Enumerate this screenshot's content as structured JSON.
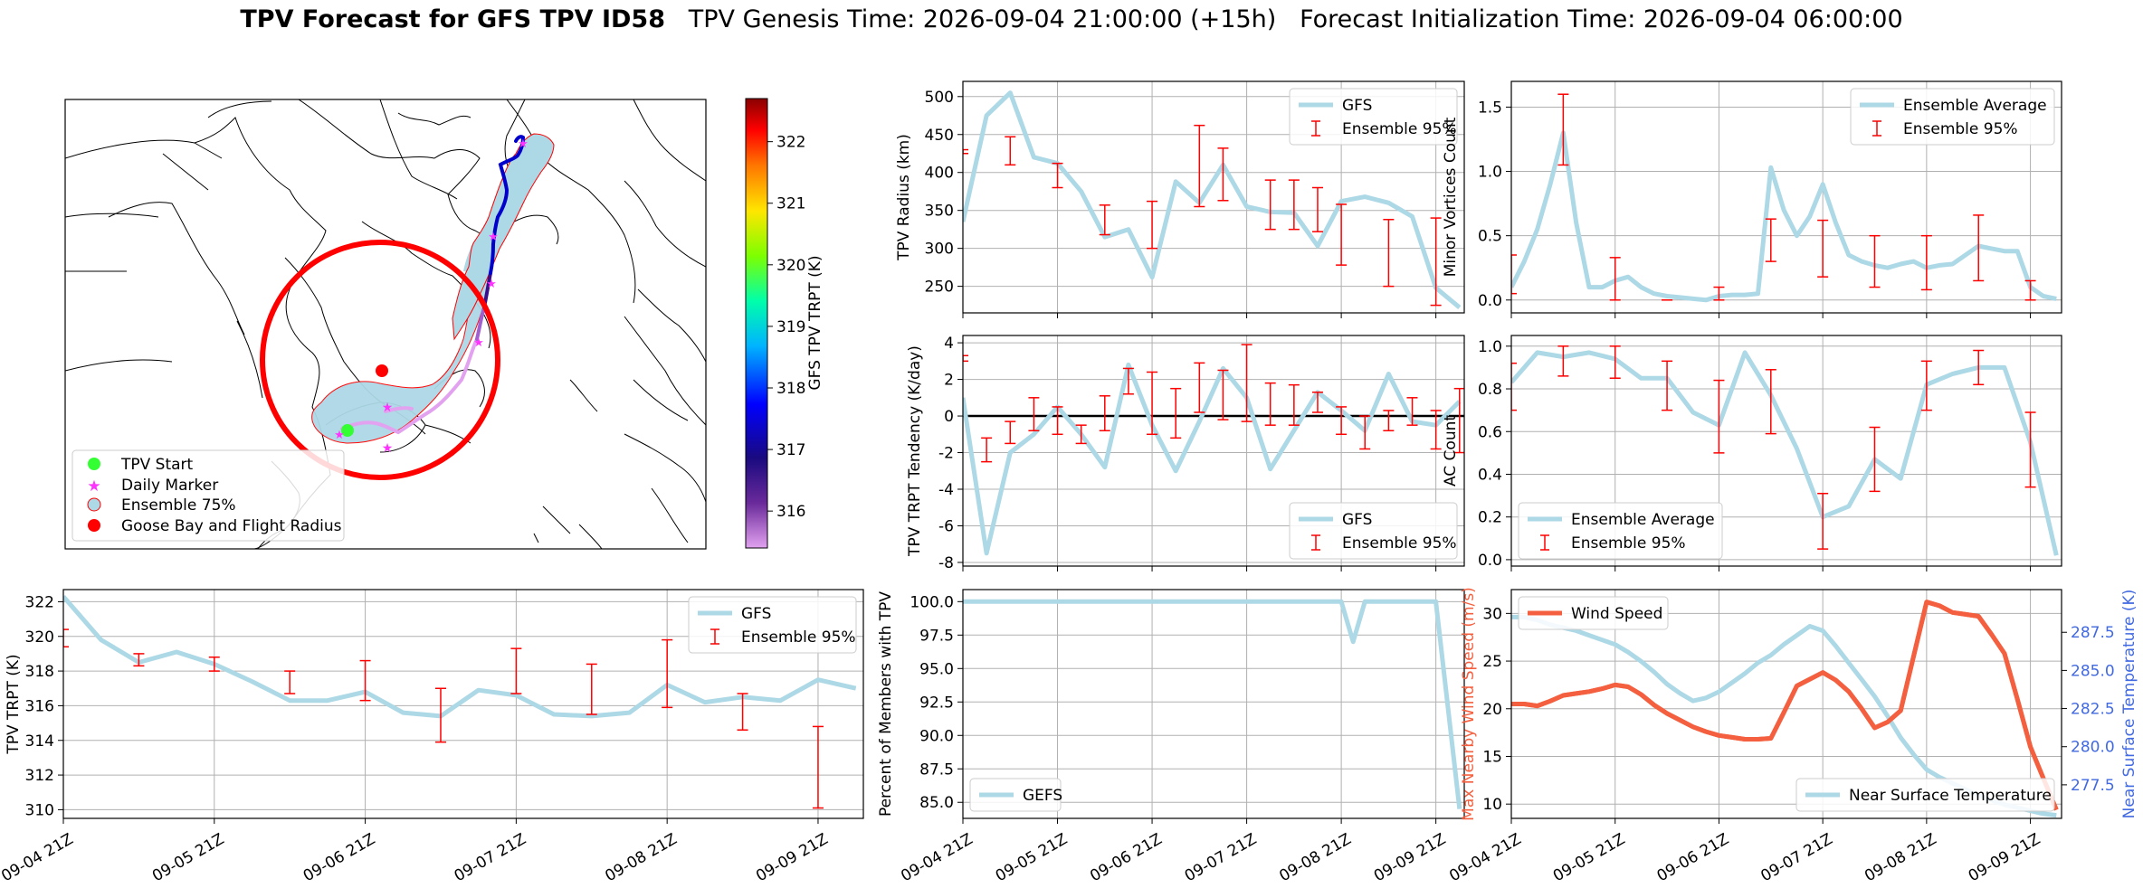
{
  "figure": {
    "title_bold": "TPV Forecast for GFS TPV ID58",
    "genesis": "TPV Genesis Time: 2026-09-04 21:00:00 (+15h)",
    "init": "Forecast Initialization Time: 2026-09-04 06:00:00"
  },
  "colors": {
    "gfs_line": "#add8e6",
    "errbar": "#ff0000",
    "wind": "#f4603f",
    "temp_axis": "#4169e1",
    "grid": "#b0b0b0"
  },
  "chart_data": [
    {
      "id": "map",
      "type": "map",
      "legend": [
        "TPV Start",
        "Daily Marker",
        "Ensemble 75%",
        "Goose Bay and Flight Radius"
      ],
      "legend_colors": [
        "#33ff33",
        "#ff33ff",
        "#add8e6",
        "#ff0000"
      ],
      "colorbar_label": "GFS TPV TRPT (K)",
      "colorbar_ticks": [
        316,
        317,
        318,
        319,
        320,
        321,
        322
      ],
      "colorbar_range": [
        315.4,
        322.7
      ]
    },
    {
      "id": "radius",
      "type": "line",
      "ylabel": "TPV Radius (km)",
      "ylim": [
        215,
        520
      ],
      "yticks": [
        250,
        300,
        350,
        400,
        450,
        500
      ],
      "legend": [
        "GFS",
        "Ensemble 95%"
      ],
      "legend_loc": "top-right",
      "x": [
        0,
        0.25,
        0.5,
        0.75,
        1,
        1.25,
        1.5,
        1.75,
        2,
        2.25,
        2.5,
        2.75,
        3,
        3.25,
        3.5,
        3.75,
        4,
        4.25,
        4.5,
        4.75,
        5,
        5.25
      ],
      "y": [
        335,
        475,
        505,
        420,
        412,
        375,
        315,
        325,
        262,
        388,
        360,
        410,
        355,
        348,
        347,
        303,
        362,
        368,
        360,
        342,
        248,
        222
      ],
      "err_x": [
        0,
        0.5,
        1,
        1.5,
        2,
        2.5,
        2.75,
        3.25,
        3.5,
        3.75,
        4,
        4.5,
        5
      ],
      "err_lo": [
        425,
        410,
        380,
        318,
        300,
        355,
        363,
        325,
        325,
        322,
        278,
        250,
        225
      ],
      "err_hi": [
        430,
        447,
        412,
        357,
        362,
        462,
        432,
        390,
        390,
        380,
        358,
        338,
        340
      ]
    },
    {
      "id": "minor",
      "type": "line",
      "ylabel": "Minor Vortices Count",
      "ylim": [
        -0.1,
        1.7
      ],
      "yticks": [
        0.0,
        0.5,
        1.0,
        1.5
      ],
      "legend": [
        "Ensemble Average",
        "Ensemble 95%"
      ],
      "legend_loc": "top-right",
      "x": [
        0,
        0.125,
        0.25,
        0.375,
        0.5,
        0.625,
        0.75,
        0.875,
        1,
        1.125,
        1.25,
        1.375,
        1.5,
        1.625,
        1.75,
        1.875,
        2,
        2.125,
        2.25,
        2.375,
        2.5,
        2.625,
        2.75,
        2.875,
        3,
        3.125,
        3.25,
        3.375,
        3.5,
        3.625,
        3.75,
        3.875,
        4,
        4.125,
        4.25,
        4.375,
        4.5,
        4.625,
        4.75,
        4.875,
        5,
        5.125,
        5.25
      ],
      "y": [
        0.1,
        0.3,
        0.55,
        0.9,
        1.3,
        0.6,
        0.1,
        0.1,
        0.15,
        0.18,
        0.1,
        0.05,
        0.03,
        0.02,
        0.01,
        0.0,
        0.03,
        0.04,
        0.04,
        0.05,
        1.03,
        0.7,
        0.5,
        0.65,
        0.9,
        0.6,
        0.35,
        0.3,
        0.27,
        0.25,
        0.28,
        0.3,
        0.25,
        0.27,
        0.28,
        0.35,
        0.42,
        0.4,
        0.38,
        0.38,
        0.1,
        0.03,
        0.01
      ],
      "err_x": [
        0,
        0.5,
        1,
        1.5,
        2,
        2.5,
        3,
        3.5,
        4,
        4.5,
        5
      ],
      "err_lo": [
        0.05,
        1.05,
        0.0,
        0.0,
        0.0,
        0.3,
        0.18,
        0.1,
        0.08,
        0.15,
        0.0
      ],
      "err_hi": [
        0.35,
        1.6,
        0.33,
        0.0,
        0.1,
        0.63,
        0.62,
        0.5,
        0.5,
        0.66,
        0.15
      ]
    },
    {
      "id": "tendency",
      "type": "line",
      "ylabel": "TPV TRPT Tendency (K/day)",
      "ylim": [
        -8.2,
        4.4
      ],
      "yticks": [
        -8,
        -6,
        -4,
        -2,
        0,
        2,
        4
      ],
      "zero_line": true,
      "legend": [
        "GFS",
        "Ensemble 95%"
      ],
      "legend_loc": "bottom-right",
      "x": [
        0,
        0.25,
        0.5,
        0.75,
        1,
        1.25,
        1.5,
        1.75,
        2,
        2.25,
        2.5,
        2.75,
        3,
        3.25,
        3.5,
        3.75,
        4,
        4.25,
        4.5,
        4.75,
        5,
        5.25
      ],
      "y": [
        1.0,
        -7.5,
        -2.0,
        -1.0,
        0.5,
        -1.0,
        -2.8,
        2.8,
        -0.5,
        -3.0,
        -0.3,
        2.6,
        1.0,
        -2.9,
        -0.8,
        1.3,
        0.3,
        -0.8,
        2.3,
        -0.3,
        -0.5,
        0.8
      ],
      "err_x": [
        0,
        0.25,
        0.5,
        0.75,
        1,
        1.25,
        1.5,
        1.75,
        2,
        2.25,
        2.5,
        2.75,
        3,
        3.25,
        3.5,
        3.75,
        4,
        4.25,
        4.5,
        4.75,
        5,
        5.25
      ],
      "err_lo": [
        3.0,
        -2.5,
        -1.5,
        -0.8,
        -1.0,
        -1.5,
        -0.8,
        1.2,
        -1.0,
        -1.2,
        0.2,
        -0.2,
        -0.3,
        -0.5,
        -0.5,
        0.2,
        -1.0,
        -1.8,
        -0.8,
        -0.5,
        -1.8,
        -2.0
      ],
      "err_hi": [
        3.3,
        -1.2,
        -0.3,
        1.0,
        0.5,
        -0.5,
        1.1,
        2.6,
        2.4,
        1.5,
        2.9,
        2.5,
        3.9,
        1.8,
        1.7,
        1.3,
        0.5,
        0.0,
        0.3,
        1.0,
        0.3,
        1.5
      ]
    },
    {
      "id": "ac",
      "type": "line",
      "ylabel": "AC Count",
      "ylim": [
        -0.03,
        1.05
      ],
      "yticks": [
        0.0,
        0.2,
        0.4,
        0.6,
        0.8,
        1.0
      ],
      "legend": [
        "Ensemble Average",
        "Ensemble 95%"
      ],
      "legend_loc": "bottom-left",
      "x": [
        0,
        0.25,
        0.5,
        0.75,
        1,
        1.25,
        1.5,
        1.75,
        2,
        2.25,
        2.5,
        2.75,
        3,
        3.25,
        3.5,
        3.75,
        4,
        4.25,
        4.5,
        4.75,
        5,
        5.25
      ],
      "y": [
        0.83,
        0.97,
        0.95,
        0.97,
        0.94,
        0.85,
        0.85,
        0.69,
        0.63,
        0.97,
        0.77,
        0.52,
        0.2,
        0.25,
        0.47,
        0.38,
        0.82,
        0.87,
        0.9,
        0.9,
        0.55,
        0.02
      ],
      "err_x": [
        0,
        0.5,
        1,
        1.5,
        2,
        2.5,
        3,
        3.5,
        4,
        4.5,
        5
      ],
      "err_lo": [
        0.7,
        0.86,
        0.85,
        0.7,
        0.5,
        0.59,
        0.05,
        0.32,
        0.7,
        0.82,
        0.34
      ],
      "err_hi": [
        0.92,
        1.0,
        1.0,
        0.93,
        0.84,
        0.89,
        0.31,
        0.62,
        0.93,
        0.98,
        0.69
      ]
    },
    {
      "id": "trpt",
      "type": "line",
      "ylabel": "TPV TRPT (K)",
      "ylim": [
        309.5,
        322.7
      ],
      "yticks": [
        310,
        312,
        314,
        316,
        318,
        320,
        322
      ],
      "legend": [
        "GFS",
        "Ensemble 95%"
      ],
      "legend_loc": "top-right",
      "x": [
        0,
        0.25,
        0.5,
        0.75,
        1,
        1.25,
        1.5,
        1.75,
        2,
        2.25,
        2.5,
        2.75,
        3,
        3.25,
        3.5,
        3.75,
        4,
        4.25,
        4.5,
        4.75,
        5,
        5.25
      ],
      "y": [
        322.3,
        319.8,
        318.5,
        319.1,
        318.4,
        317.4,
        316.3,
        316.3,
        316.8,
        315.6,
        315.4,
        316.9,
        316.6,
        315.5,
        315.4,
        315.6,
        317.2,
        316.2,
        316.5,
        316.3,
        317.5,
        317.0
      ],
      "err_x": [
        0,
        0.5,
        1,
        1.5,
        2,
        2.5,
        3,
        3.5,
        4,
        4.5,
        5
      ],
      "err_lo": [
        319.4,
        318.3,
        318.0,
        316.7,
        316.3,
        313.9,
        316.7,
        315.5,
        315.9,
        314.6,
        310.1
      ],
      "err_hi": [
        320.4,
        319.0,
        318.8,
        318.0,
        318.6,
        317.0,
        319.3,
        318.4,
        319.8,
        316.7,
        314.8
      ]
    },
    {
      "id": "members",
      "type": "line",
      "ylabel": "Percent of Members with TPV",
      "ylim": [
        83.8,
        100.9
      ],
      "yticks": [
        85.0,
        87.5,
        90.0,
        92.5,
        95.0,
        97.5,
        100.0
      ],
      "legend": [
        "GEFS"
      ],
      "legend_loc": "bottom-left",
      "x": [
        0,
        0.5,
        1,
        1.5,
        2,
        2.5,
        3,
        3.5,
        4,
        4.125,
        4.25,
        4.5,
        4.75,
        5,
        5.25
      ],
      "y": [
        100,
        100,
        100,
        100,
        100,
        100,
        100,
        100,
        100,
        97,
        100,
        100,
        100,
        100,
        84.5
      ]
    },
    {
      "id": "wind",
      "type": "line",
      "ylabel": "Max Nearby Wind Speed (m/s)",
      "ylabel_right": "Near Surface Temperature (K)",
      "ylim": [
        8.5,
        32.5
      ],
      "yticks": [
        10,
        15,
        20,
        25,
        30
      ],
      "y2lim": [
        275.3,
        290.3
      ],
      "y2ticks": [
        277.5,
        280.0,
        282.5,
        285.0,
        287.5
      ],
      "legend": [
        "Wind Speed"
      ],
      "legend_loc": "top-left",
      "legend2": [
        "Near Surface Temperature"
      ],
      "legend2_loc": "bottom-right",
      "x": [
        0,
        0.125,
        0.25,
        0.375,
        0.5,
        0.625,
        0.75,
        0.875,
        1,
        1.125,
        1.25,
        1.375,
        1.5,
        1.625,
        1.75,
        1.875,
        2,
        2.125,
        2.25,
        2.375,
        2.5,
        2.625,
        2.75,
        2.875,
        3,
        3.125,
        3.25,
        3.375,
        3.5,
        3.625,
        3.75,
        3.875,
        4,
        4.125,
        4.25,
        4.375,
        4.5,
        4.625,
        4.75,
        4.875,
        5,
        5.125,
        5.25
      ],
      "y": [
        20.5,
        20.5,
        20.3,
        20.8,
        21.4,
        21.6,
        21.8,
        22.1,
        22.5,
        22.3,
        21.5,
        20.4,
        19.5,
        18.8,
        18.1,
        17.6,
        17.2,
        17.0,
        16.8,
        16.8,
        16.9,
        19.6,
        22.4,
        23.1,
        23.8,
        23.0,
        21.8,
        20.0,
        18.0,
        18.6,
        19.8,
        25.5,
        31.2,
        30.8,
        30.1,
        29.9,
        29.7,
        27.8,
        25.8,
        21.0,
        16.0,
        12.7,
        9.4
      ],
      "y2": [
        288.5,
        288.5,
        288.3,
        288.0,
        287.8,
        287.6,
        287.3,
        287.0,
        286.7,
        286.2,
        285.6,
        284.9,
        284.1,
        283.5,
        283.0,
        283.2,
        283.6,
        284.2,
        284.8,
        285.5,
        286.0,
        286.7,
        287.3,
        287.9,
        287.6,
        286.6,
        285.5,
        284.4,
        283.3,
        282.0,
        280.6,
        279.5,
        278.5,
        278.0,
        277.6,
        277.2,
        276.8,
        276.5,
        276.2,
        276.0,
        275.8,
        275.6,
        275.5
      ]
    }
  ],
  "time_axis": {
    "ticks": [
      0,
      1,
      2,
      3,
      4,
      5
    ],
    "labels": [
      "09-04 21Z",
      "09-05 21Z",
      "09-06 21Z",
      "09-07 21Z",
      "09-08 21Z",
      "09-09 21Z"
    ],
    "xlim": [
      0,
      5.3
    ]
  }
}
